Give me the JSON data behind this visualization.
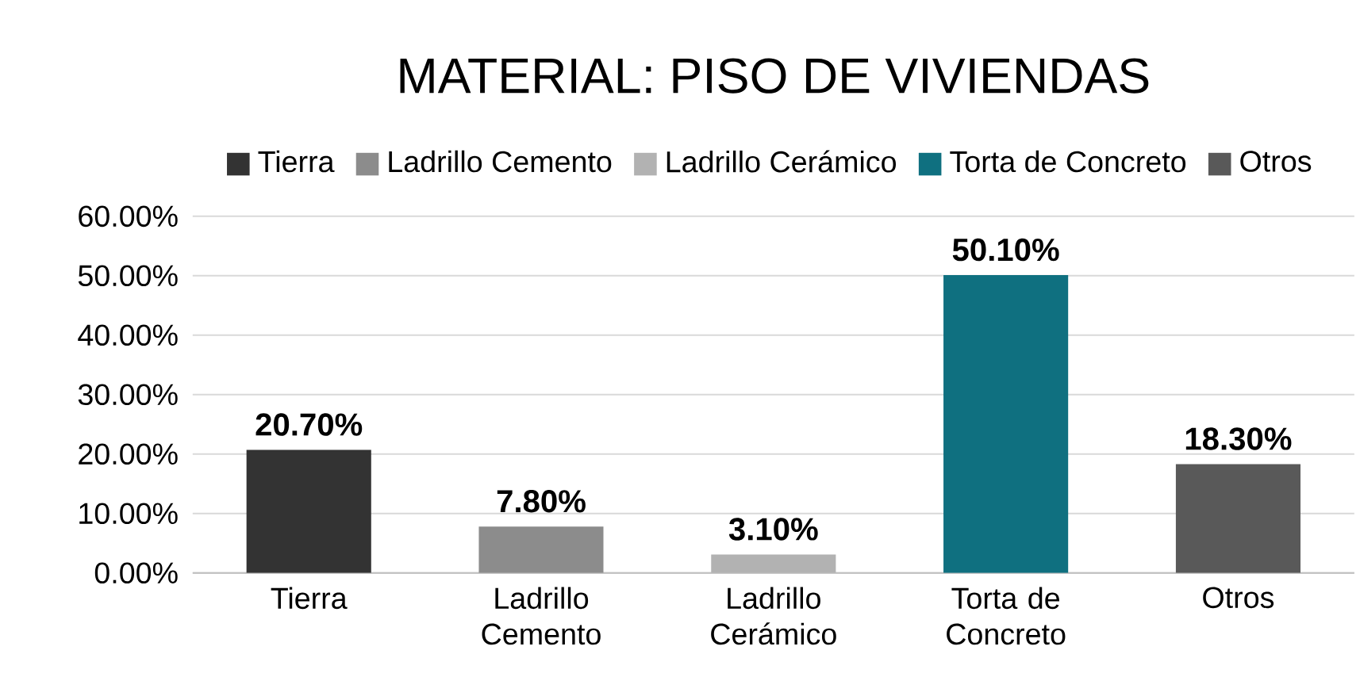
{
  "chart_data": {
    "type": "bar",
    "title": "MATERIAL: PISO DE VIVIENDAS",
    "categories": [
      "Tierra",
      "Ladrillo Cemento",
      "Ladrillo Cerámico",
      "Torta de Concreto",
      "Otros"
    ],
    "series": [
      {
        "name": "Tierra",
        "color": "#333333",
        "values": [
          20.7,
          null,
          null,
          null,
          null
        ],
        "value_labels": [
          "20.70%",
          null,
          null,
          null,
          null
        ]
      },
      {
        "name": "Ladrillo Cemento",
        "color": "#8c8c8c",
        "values": [
          null,
          7.8,
          null,
          null,
          null
        ],
        "value_labels": [
          null,
          "7.80%",
          null,
          null,
          null
        ]
      },
      {
        "name": "Ladrillo Cerámico",
        "color": "#b2b2b2",
        "values": [
          null,
          null,
          3.1,
          null,
          null
        ],
        "value_labels": [
          null,
          null,
          "3.10%",
          null,
          null
        ]
      },
      {
        "name": "Torta de Concreto",
        "color": "#0f7080",
        "values": [
          null,
          null,
          null,
          50.1,
          null
        ],
        "value_labels": [
          null,
          null,
          null,
          "50.10%",
          null
        ]
      },
      {
        "name": "Otros",
        "color": "#595959",
        "values": [
          null,
          null,
          null,
          null,
          18.3
        ],
        "value_labels": [
          null,
          null,
          null,
          null,
          "18.30%"
        ]
      }
    ],
    "ylim": [
      0,
      60
    ],
    "yticks": [
      {
        "value": 0,
        "label": "0.00%"
      },
      {
        "value": 10,
        "label": "10.00%"
      },
      {
        "value": 20,
        "label": "20.00%"
      },
      {
        "value": 30,
        "label": "30.00%"
      },
      {
        "value": 40,
        "label": "40.00%"
      },
      {
        "value": 50,
        "label": "50.00%"
      },
      {
        "value": 60,
        "label": "60.00%"
      }
    ],
    "grid": "y",
    "legend": "top"
  }
}
